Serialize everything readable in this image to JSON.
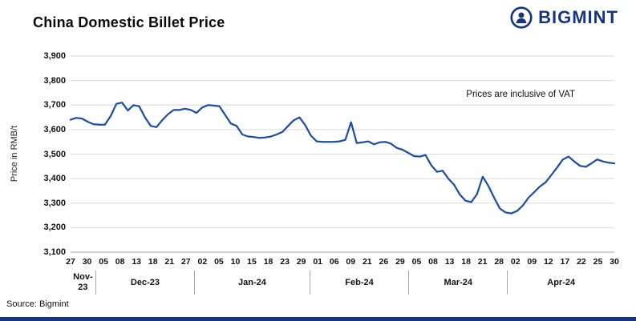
{
  "header": {
    "title": "China Domestic Billet Price",
    "logo": {
      "text": "BIGMINT",
      "icon": "miner-in-circle-icon"
    }
  },
  "colors": {
    "line": "#1E4FA3",
    "navy": "#16357F",
    "gridline": "#D9D9D9",
    "axis": "#A6A6A6",
    "text": "#111111"
  },
  "chart_data": {
    "type": "line",
    "title": "China Domestic Billet Price",
    "ylabel": "Price in RMB/t",
    "xlabel": "",
    "ylim": [
      3100,
      3900
    ],
    "ytick_step": 100,
    "y_tick_labels": [
      "3,900",
      "3,800",
      "3,700",
      "3,600",
      "3,500",
      "3,400",
      "3,300",
      "3,200",
      "3,100"
    ],
    "grid": "horizontal",
    "legend": "none",
    "annotation": "Prices are inclusive of VAT",
    "x_tick_labels": [
      "27",
      "30",
      "05",
      "08",
      "13",
      "18",
      "21",
      "27",
      "02",
      "05",
      "10",
      "15",
      "18",
      "23",
      "29",
      "01",
      "06",
      "09",
      "21",
      "26",
      "29",
      "05",
      "08",
      "13",
      "18",
      "21",
      "28",
      "02",
      "09",
      "12",
      "17",
      "22",
      "25",
      "30"
    ],
    "month_groups": [
      {
        "label": "Nov-23",
        "ticks": 2
      },
      {
        "label": "Dec-23",
        "ticks": 6
      },
      {
        "label": "Jan-24",
        "ticks": 7
      },
      {
        "label": "Feb-24",
        "ticks": 6
      },
      {
        "label": "Mar-24",
        "ticks": 6
      },
      {
        "label": "Apr-24",
        "ticks": 7
      }
    ],
    "values": [
      3640,
      3648,
      3645,
      3632,
      3622,
      3620,
      3620,
      3655,
      3705,
      3710,
      3678,
      3700,
      3695,
      3650,
      3615,
      3610,
      3638,
      3662,
      3680,
      3680,
      3685,
      3680,
      3668,
      3690,
      3700,
      3698,
      3695,
      3660,
      3625,
      3615,
      3580,
      3572,
      3570,
      3566,
      3568,
      3572,
      3580,
      3590,
      3615,
      3638,
      3650,
      3618,
      3575,
      3552,
      3550,
      3550,
      3550,
      3552,
      3558,
      3630,
      3545,
      3548,
      3552,
      3540,
      3548,
      3550,
      3542,
      3525,
      3518,
      3505,
      3492,
      3490,
      3496,
      3455,
      3428,
      3432,
      3400,
      3375,
      3335,
      3310,
      3304,
      3336,
      3408,
      3370,
      3322,
      3278,
      3262,
      3258,
      3268,
      3290,
      3322,
      3345,
      3368,
      3385,
      3415,
      3445,
      3478,
      3490,
      3470,
      3452,
      3448,
      3462,
      3478,
      3470,
      3465,
      3462
    ]
  },
  "footer": {
    "source": "Source: Bigmint"
  }
}
